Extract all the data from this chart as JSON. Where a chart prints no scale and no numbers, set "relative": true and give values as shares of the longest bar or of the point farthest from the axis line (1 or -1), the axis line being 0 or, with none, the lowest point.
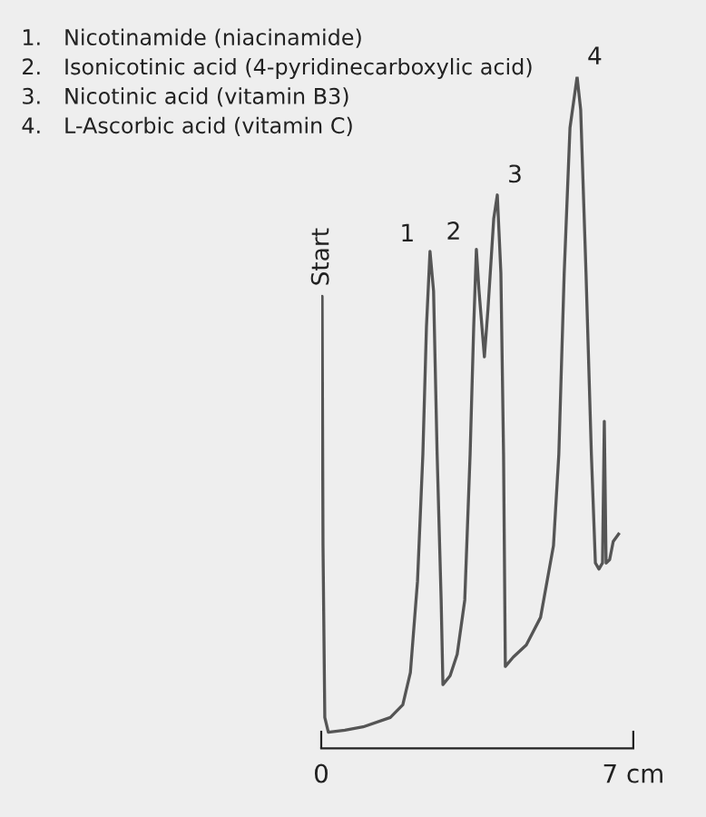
{
  "chart_data": {
    "type": "line",
    "relative": true,
    "x": [
      0.0,
      0.02,
      0.04,
      0.08,
      0.16,
      0.53,
      0.94,
      1.55,
      1.83,
      2.0,
      2.16,
      2.28,
      2.36,
      2.44,
      2.52,
      2.6,
      2.69,
      2.73,
      2.89,
      3.05,
      3.22,
      3.34,
      3.42,
      3.48,
      3.54,
      3.66,
      3.74,
      3.87,
      3.95,
      4.03,
      4.09,
      4.13,
      4.31,
      4.6,
      4.92,
      5.21,
      5.33,
      5.45,
      5.58,
      5.74,
      5.82,
      5.94,
      6.06,
      6.15,
      6.23,
      6.31,
      6.35,
      6.39,
      6.47,
      6.55,
      6.67
    ],
    "series": [
      {
        "color": "#555555",
        "values": [
          0.654,
          0.673,
          0.302,
          0.046,
          0.024,
          0.027,
          0.032,
          0.046,
          0.065,
          0.113,
          0.249,
          0.438,
          0.627,
          0.74,
          0.681,
          0.438,
          0.221,
          0.095,
          0.108,
          0.14,
          0.221,
          0.438,
          0.627,
          0.743,
          0.681,
          0.583,
          0.654,
          0.789,
          0.824,
          0.708,
          0.438,
          0.122,
          0.136,
          0.154,
          0.195,
          0.302,
          0.438,
          0.707,
          0.924,
          1,
          0.951,
          0.707,
          0.438,
          0.276,
          0.267,
          0.276,
          0.487,
          0.276,
          0.281,
          0.308,
          0.319
        ]
      }
    ],
    "xlim": [
      0,
      7
    ],
    "xticks": [
      0,
      {
        "value": 7,
        "label": "7 cm"
      }
    ],
    "grid": false,
    "legend": false,
    "marker": "none",
    "line_style": "solid",
    "annotations": [
      "1. Nicotinamide (niacinamide)",
      "2. Isonicotinic acid (4-pyridinecarboxylic acid)",
      "3. Nicotinic acid (vitamin B3)",
      "4. L-Ascorbic acid (vitamin C)",
      {
        "text": "Start",
        "x": 0.02,
        "y": 0.673
      },
      {
        "text": "1",
        "x": 2.44,
        "y": 0.74
      },
      {
        "text": "2",
        "x": 3.48,
        "y": 0.743
      },
      {
        "text": "3",
        "x": 3.95,
        "y": 0.824
      },
      {
        "text": "4",
        "x": 5.74,
        "y": 1
      }
    ]
  }
}
